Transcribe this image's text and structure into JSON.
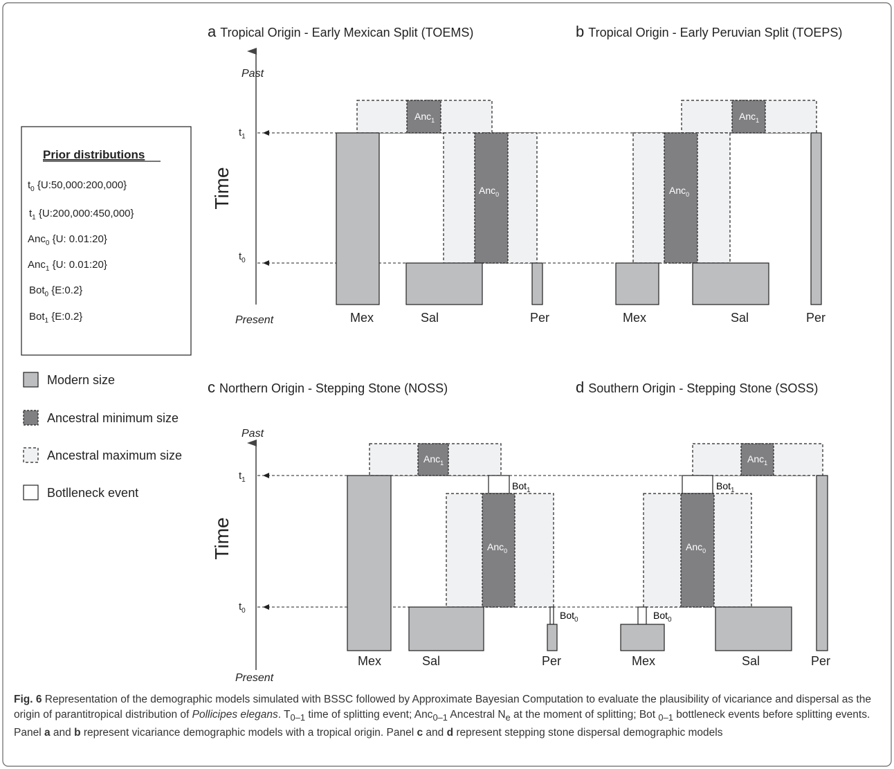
{
  "panels": {
    "a": {
      "letter": "a",
      "title": "Tropical Origin - Early Mexican Split  (TOEMS)"
    },
    "b": {
      "letter": "b",
      "title": "Tropical Origin - Early Peruvian Split (TOEPS)"
    },
    "c": {
      "letter": "c",
      "title": "Northern Origin - Stepping Stone (NOSS)"
    },
    "d": {
      "letter": "d",
      "title": "Southern Origin - Stepping Stone (SOSS)"
    }
  },
  "axis": {
    "past": "Past",
    "present": "Present",
    "time": "Time",
    "t1": "t",
    "t1_sub": "1",
    "t0": "t",
    "t0_sub": "0"
  },
  "populations": {
    "mex": "Mex",
    "sal": "Sal",
    "per": "Per"
  },
  "blocks": {
    "anc": "Anc",
    "anc0_sub": "0",
    "anc1_sub": "1",
    "bot": "Bot",
    "bot0_sub": "0",
    "bot1_sub": "1"
  },
  "priors": {
    "title": "Prior distributions",
    "items": [
      {
        "name": "t",
        "sub": "0",
        "dist": " {U:50,000:200,000}"
      },
      {
        "name": "t",
        "sub": "1",
        "dist": " {U:200,000:450,000}"
      },
      {
        "name": "Anc",
        "sub": "0",
        "dist": " {U: 0.01:20}"
      },
      {
        "name": "Anc",
        "sub": "1",
        "dist": " {U: 0.01:20}"
      },
      {
        "name": "Bot",
        "sub": "0",
        "dist": " {E:0.2}"
      },
      {
        "name": "Bot",
        "sub": "1",
        "dist": " {E:0.2}"
      }
    ]
  },
  "legend": [
    {
      "label": "Modern size"
    },
    {
      "label": "Ancestral minimum size"
    },
    {
      "label": "Ancestral maximum size"
    },
    {
      "label": "Botlleneck event"
    }
  ],
  "caption": {
    "fig": "Fig. 6",
    "p1": " Representation of the demographic models simulated with BSSC followed by Approximate Bayesian Computation to evaluate the plausibility of vicariance and dispersal as the origin of parantitropical distribution of ",
    "species": "Pollicipes elegans",
    "p2": ". T",
    "t_sub": "0–1",
    "p3": " time of splitting event; Anc",
    "anc_sub": "0–1",
    "p4": " Ancestral N",
    "ne_sub": "e",
    "p5": " at the moment of splitting; Bot ",
    "bot_sub": "0–1",
    "p6": " bottleneck events before splitting events. Panel ",
    "a": "a",
    "p7": " and ",
    "b": "b",
    "p8": " represent vicariance demographic models with a tropical origin. Panel ",
    "c": "c",
    "p9": " and ",
    "d": "d",
    "p10": " represent stepping stone dispersal demographic models"
  }
}
